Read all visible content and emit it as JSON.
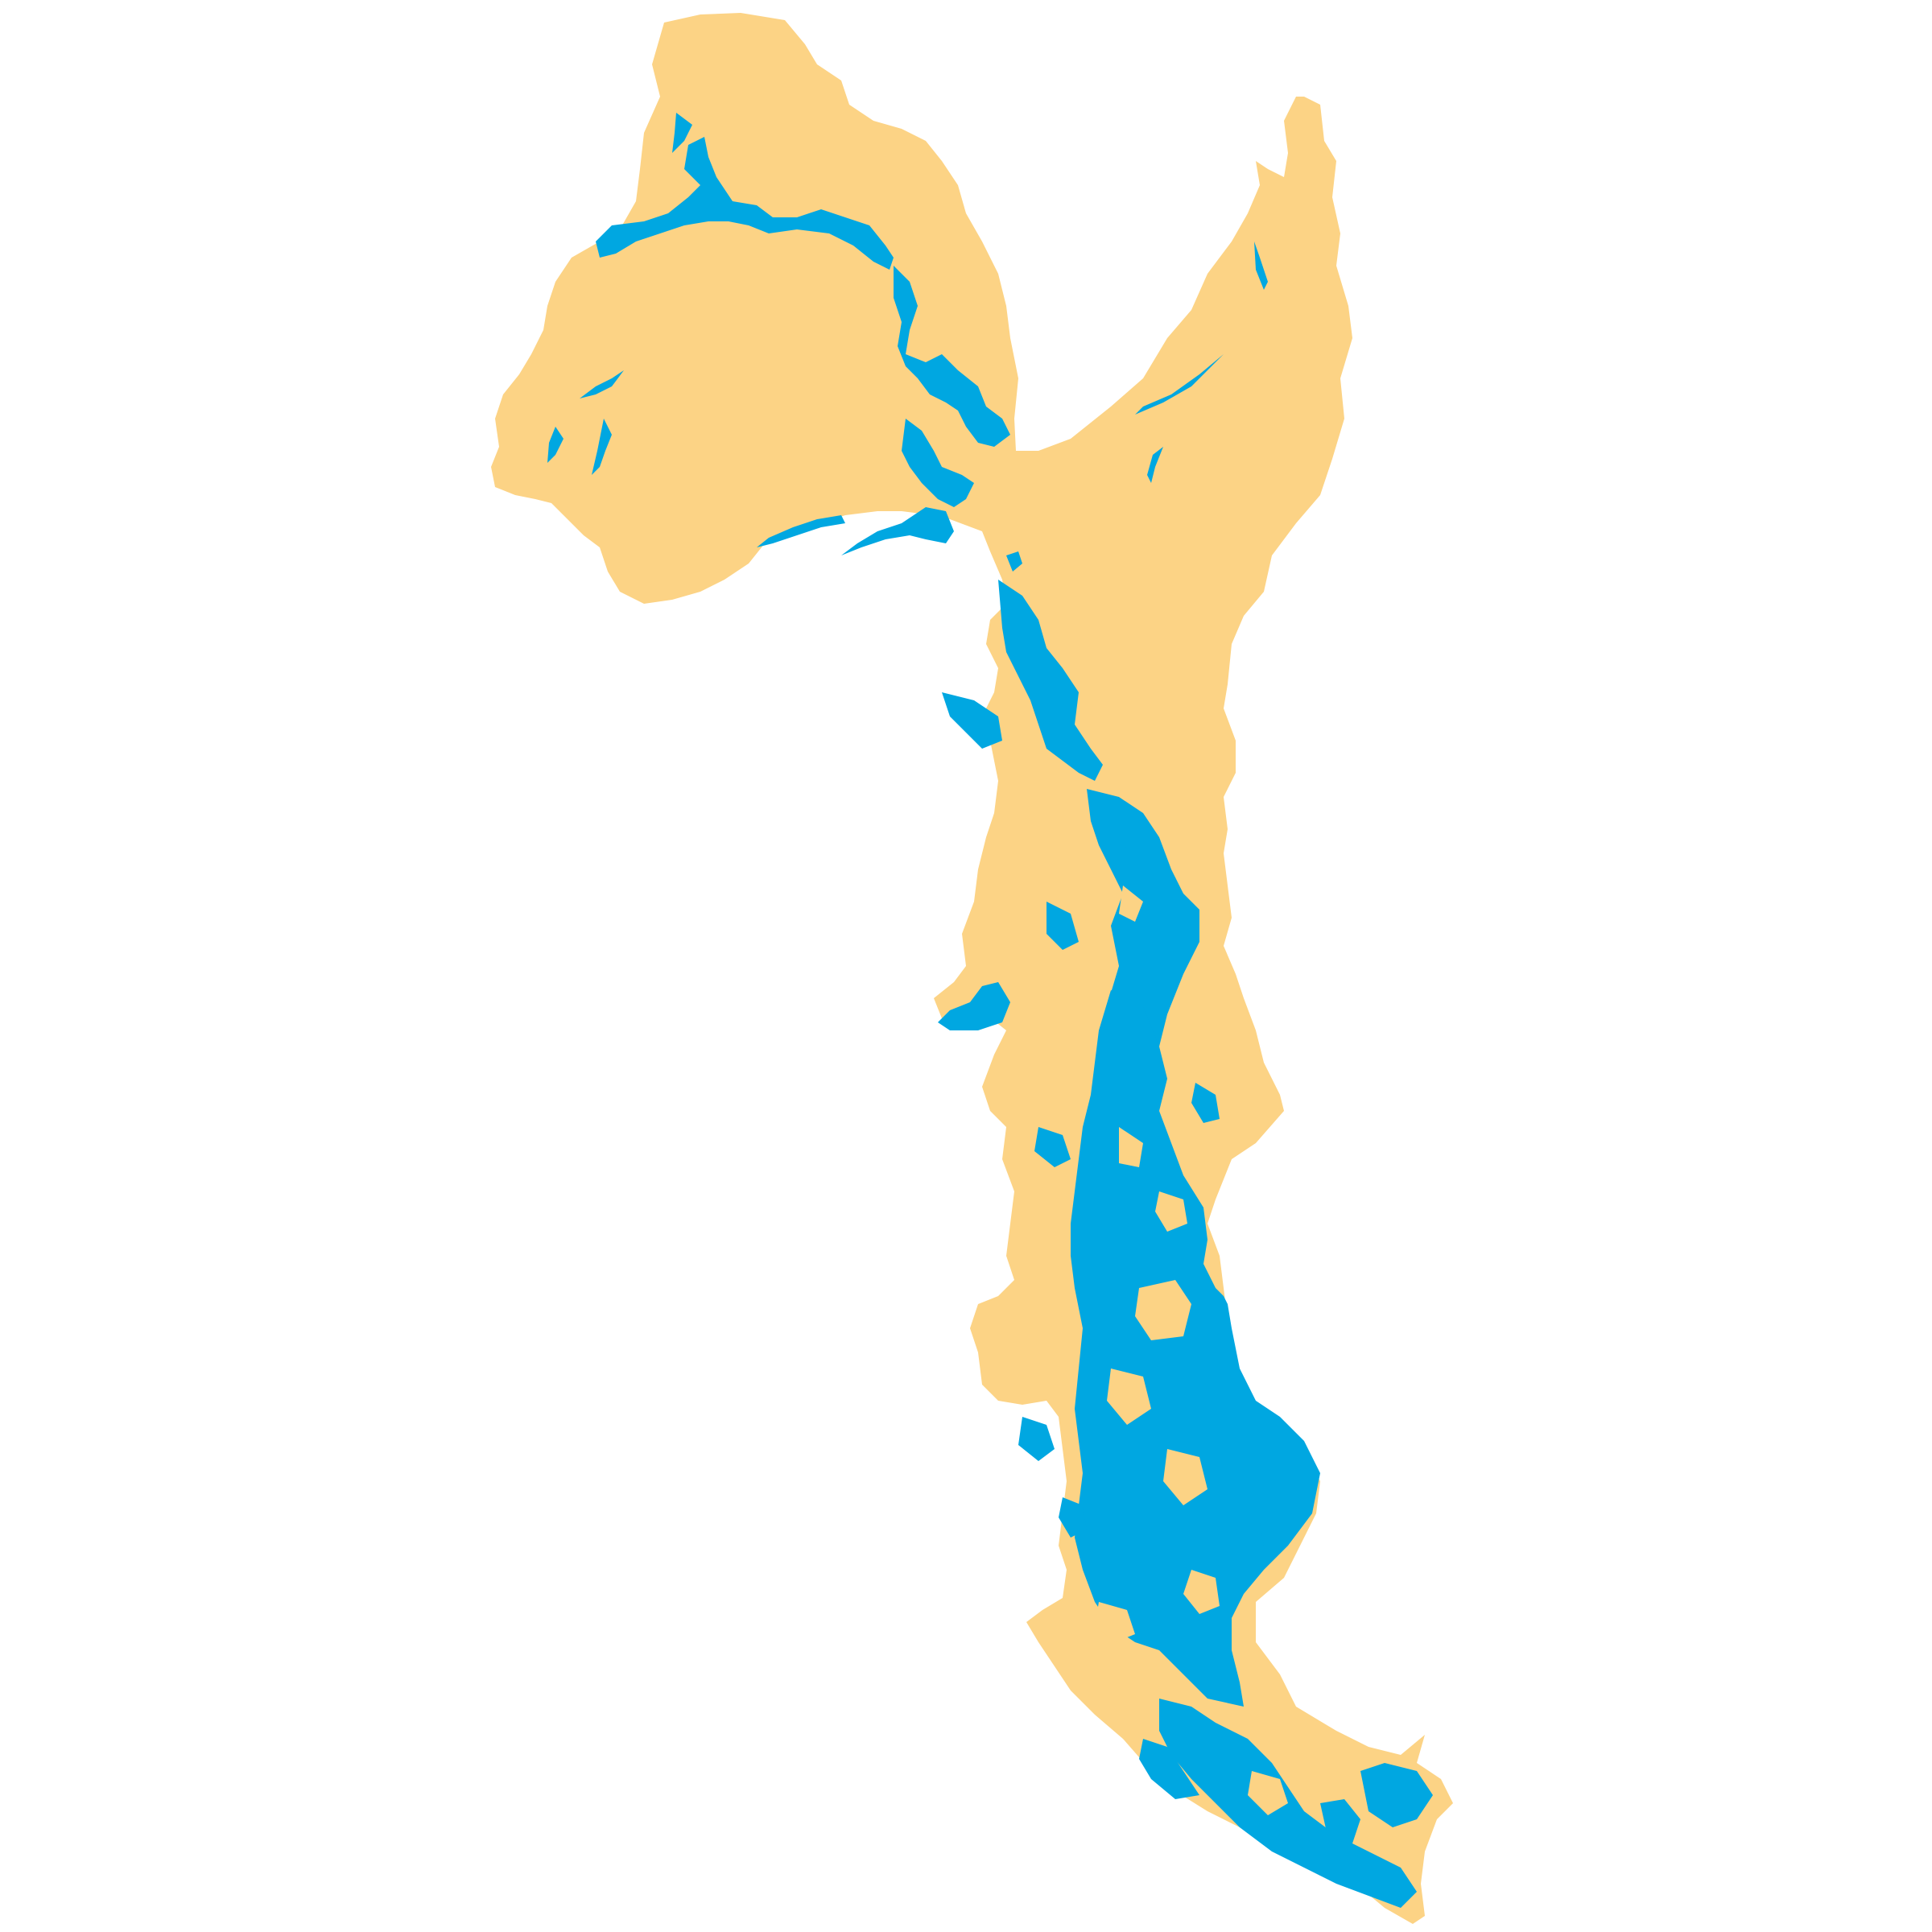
{
  "map": {
    "colors": {
      "background": "#ffffff",
      "land": "#fcd385",
      "water": "#00a7e1"
    },
    "layers": [
      {
        "name": "watershed-land",
        "color_key": "land"
      },
      {
        "name": "inundation-water",
        "color_key": "water"
      }
    ]
  }
}
